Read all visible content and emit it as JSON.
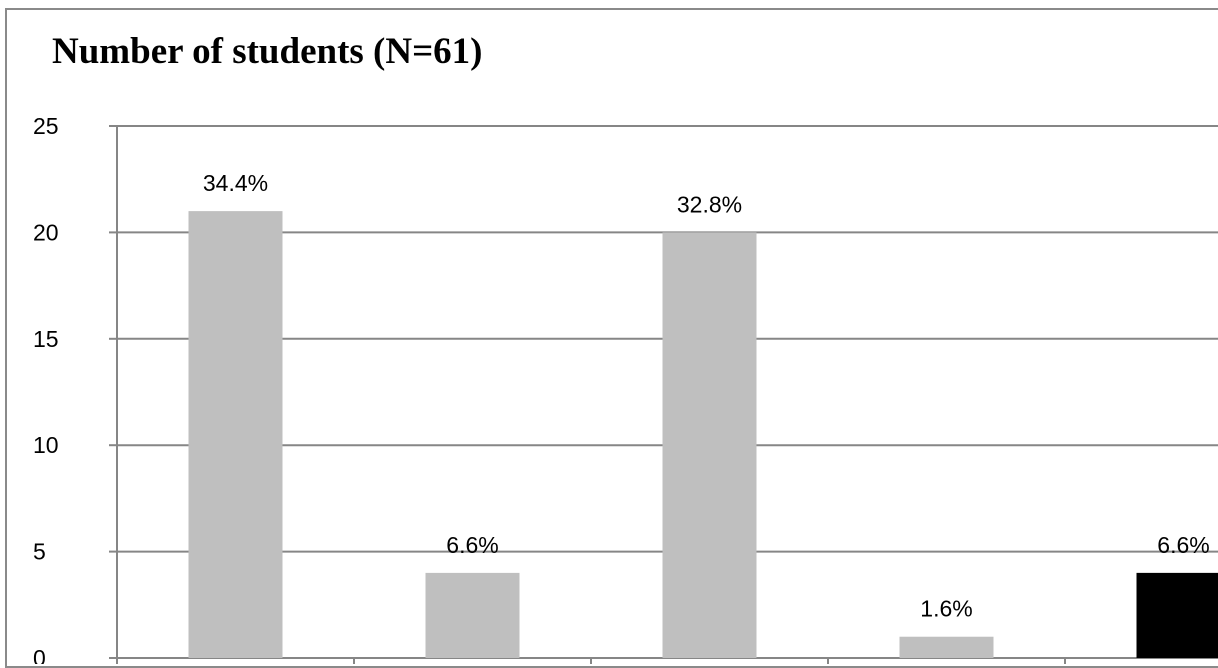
{
  "chart_data": {
    "type": "bar",
    "title": "Number of students (N=61)",
    "categories": [
      "",
      "",
      "",
      "",
      ""
    ],
    "values": [
      21,
      4,
      20,
      1,
      4
    ],
    "data_labels": [
      "34.4%",
      "6.6%",
      "32.8%",
      "1.6%",
      "6.6%"
    ],
    "bar_colors": [
      "#bfbfbf",
      "#bfbfbf",
      "#bfbfbf",
      "#bfbfbf",
      "#000000"
    ],
    "ylim": [
      0,
      25
    ],
    "yticks": [
      0,
      5,
      10,
      15,
      20,
      25
    ],
    "grid": true,
    "gridline_color": "#868686",
    "xlabel": "",
    "ylabel": ""
  }
}
